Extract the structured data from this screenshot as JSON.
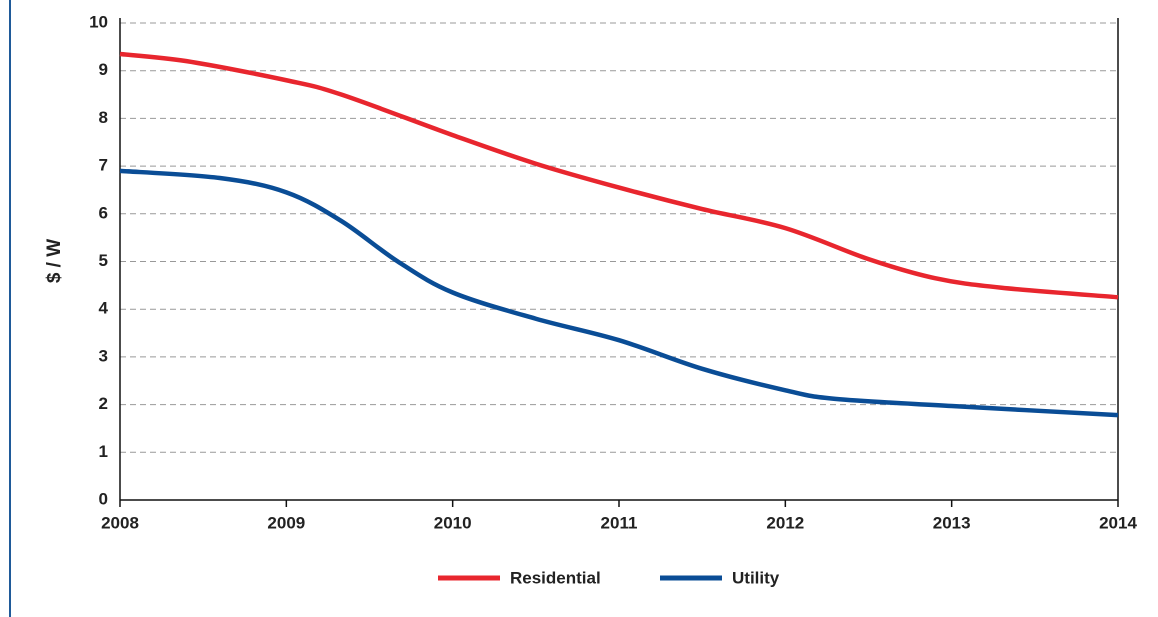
{
  "chart_data": {
    "type": "line",
    "y_label": "$ / W",
    "xlim": [
      2008,
      2014
    ],
    "xticks": [
      2008,
      2009,
      2010,
      2011,
      2012,
      2013,
      2014
    ],
    "ylim": [
      0,
      10
    ],
    "yticks": [
      0,
      1,
      2,
      3,
      4,
      5,
      6,
      7,
      8,
      9,
      10
    ],
    "grid": true,
    "legend": "bottom",
    "series": [
      {
        "name": "Residential",
        "color": "#e8262e",
        "x": [
          2008,
          2008.4,
          2009,
          2009.33,
          2010,
          2010.5,
          2011,
          2011.5,
          2012,
          2012.5,
          2012.9,
          2013.3,
          2014
        ],
        "values": [
          9.35,
          9.2,
          8.8,
          8.5,
          7.65,
          7.05,
          6.55,
          6.1,
          5.7,
          5.05,
          4.65,
          4.45,
          4.25
        ]
      },
      {
        "name": "Utility",
        "color": "#0a4d96",
        "x": [
          2008,
          2008.6,
          2009,
          2009.33,
          2009.67,
          2010,
          2010.5,
          2011,
          2011.5,
          2012,
          2012.3,
          2013,
          2014
        ],
        "values": [
          6.9,
          6.75,
          6.45,
          5.85,
          5.0,
          4.35,
          3.8,
          3.35,
          2.75,
          2.3,
          2.12,
          1.97,
          1.78
        ]
      }
    ]
  }
}
